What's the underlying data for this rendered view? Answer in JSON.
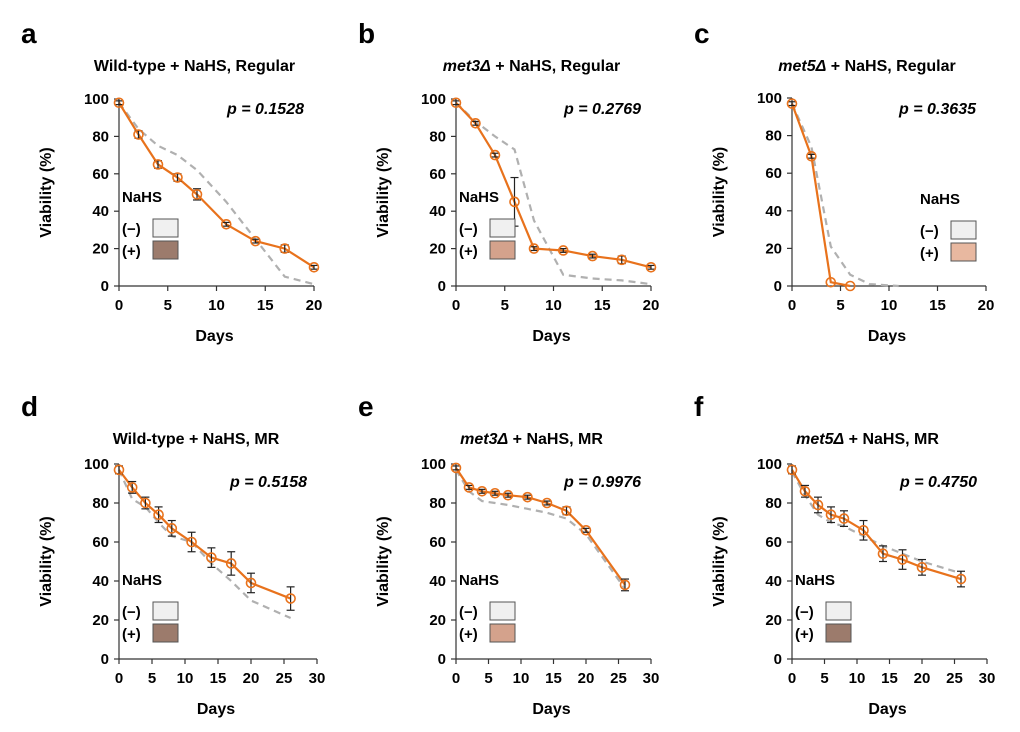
{
  "figure": {
    "bg": "#ffffff",
    "line_color": "#e8721c",
    "control_color": "#b0b0b0",
    "axis_color": "#333333"
  },
  "chart_data": [
    {
      "id": "a",
      "panel_label": "a",
      "type": "line",
      "title": "Wild-type + NaHS, Regular",
      "title_italic": "",
      "xlabel": "Days",
      "ylabel": "Viability (%)",
      "xlim": [
        0,
        20
      ],
      "ylim": [
        0,
        100
      ],
      "xticks": [
        "0",
        "5",
        "10",
        "15",
        "20"
      ],
      "yticks": [
        "0",
        "20",
        "40",
        "60",
        "80",
        "100"
      ],
      "p_value": "p = 0.1528",
      "legend": {
        "title": "NaHS",
        "items": [
          "(−)",
          "(+)"
        ],
        "colors": [
          "#f0f0f0",
          "#9c7b6c"
        ],
        "position": "bottom-left"
      },
      "series": [
        {
          "name": "NaHS (+)",
          "x": [
            0,
            2,
            4,
            6,
            8,
            11,
            14,
            17,
            20
          ],
          "y": [
            98,
            81,
            65,
            58,
            49,
            33,
            24,
            20,
            10
          ],
          "err": [
            1,
            2,
            2,
            2,
            3,
            1,
            1,
            2,
            1
          ]
        },
        {
          "name": "NaHS (−)",
          "x": [
            0,
            2,
            4,
            6,
            8,
            11,
            14,
            17,
            20
          ],
          "y": [
            98,
            84,
            75,
            70,
            62,
            45,
            25,
            5,
            1
          ]
        }
      ]
    },
    {
      "id": "b",
      "panel_label": "b",
      "type": "line",
      "title": " + NaHS, Regular",
      "title_italic": "met3Δ",
      "xlabel": "Days",
      "ylabel": "Viability (%)",
      "xlim": [
        0,
        20
      ],
      "ylim": [
        0,
        100
      ],
      "xticks": [
        "0",
        "5",
        "10",
        "15",
        "20"
      ],
      "yticks": [
        "0",
        "20",
        "40",
        "60",
        "80",
        "100"
      ],
      "p_value": "p = 0.2769",
      "legend": {
        "title": "NaHS",
        "items": [
          "(−)",
          "(+)"
        ],
        "colors": [
          "#f0f0f0",
          "#d4a28c"
        ],
        "position": "bottom-left"
      },
      "series": [
        {
          "name": "NaHS (+)",
          "x": [
            0,
            2,
            4,
            6,
            8,
            11,
            14,
            17,
            20
          ],
          "y": [
            98,
            87,
            70,
            45,
            20,
            19,
            16,
            14,
            10
          ],
          "err": [
            1,
            1,
            1,
            13,
            1,
            1,
            1,
            2,
            1
          ]
        },
        {
          "name": "NaHS (−)",
          "x": [
            0,
            2,
            4,
            6,
            8,
            11,
            14,
            17,
            20
          ],
          "y": [
            98,
            88,
            80,
            73,
            35,
            6,
            4,
            3,
            1
          ]
        }
      ]
    },
    {
      "id": "c",
      "panel_label": "c",
      "type": "line",
      "title": " + NaHS, Regular",
      "title_italic": "met5Δ",
      "xlabel": "Days",
      "ylabel": "Viability (%)",
      "xlim": [
        0,
        20
      ],
      "ylim": [
        0,
        100
      ],
      "xticks": [
        "0",
        "5",
        "10",
        "15",
        "20"
      ],
      "yticks": [
        "0",
        "20",
        "40",
        "60",
        "80",
        "100"
      ],
      "p_value": "p = 0.3635",
      "legend": {
        "title": "NaHS",
        "items": [
          "(−)",
          "(+)"
        ],
        "colors": [
          "#f0f0f0",
          "#e8b8a0"
        ],
        "position": "bottom-right"
      },
      "series": [
        {
          "name": "NaHS (+)",
          "x": [
            0,
            2,
            4,
            6
          ],
          "y": [
            97,
            69,
            2,
            0
          ],
          "err": [
            1,
            1,
            0,
            0
          ]
        },
        {
          "name": "NaHS (−)",
          "x": [
            0,
            2,
            4,
            6,
            8,
            11
          ],
          "y": [
            97,
            74,
            21,
            6,
            1,
            0
          ]
        }
      ]
    },
    {
      "id": "d",
      "panel_label": "d",
      "type": "line",
      "title": "Wild-type + NaHS, MR",
      "title_italic": "",
      "xlabel": "Days",
      "ylabel": "Viability (%)",
      "xlim": [
        0,
        30
      ],
      "ylim": [
        0,
        100
      ],
      "xticks": [
        "0",
        "5",
        "10",
        "15",
        "20",
        "25",
        "30"
      ],
      "yticks": [
        "0",
        "20",
        "40",
        "60",
        "80",
        "100"
      ],
      "p_value": "p = 0.5158",
      "legend": {
        "title": "NaHS",
        "items": [
          "(−)",
          "(+)"
        ],
        "colors": [
          "#f0f0f0",
          "#9c7b6c"
        ],
        "position": "bottom-left"
      },
      "series": [
        {
          "name": "NaHS (+)",
          "x": [
            0,
            2,
            4,
            6,
            8,
            11,
            14,
            17,
            20,
            26
          ],
          "y": [
            97,
            88,
            80,
            74,
            67,
            60,
            52,
            49,
            39,
            31
          ],
          "err": [
            2,
            3,
            3,
            4,
            4,
            5,
            5,
            6,
            5,
            6
          ]
        },
        {
          "name": "NaHS (−)",
          "x": [
            0,
            2,
            4,
            6,
            8,
            11,
            14,
            17,
            20,
            26
          ],
          "y": [
            97,
            82,
            78,
            70,
            63,
            60,
            49,
            40,
            30,
            21
          ]
        }
      ]
    },
    {
      "id": "e",
      "panel_label": "e",
      "type": "line",
      "title": " + NaHS, MR",
      "title_italic": "met3Δ",
      "xlabel": "Days",
      "ylabel": "Viability (%)",
      "xlim": [
        0,
        30
      ],
      "ylim": [
        0,
        100
      ],
      "xticks": [
        "0",
        "5",
        "10",
        "15",
        "20",
        "25",
        "30"
      ],
      "yticks": [
        "0",
        "20",
        "40",
        "60",
        "80",
        "100"
      ],
      "p_value": "p = 0.9976",
      "legend": {
        "title": "NaHS",
        "items": [
          "(−)",
          "(+)"
        ],
        "colors": [
          "#f0f0f0",
          "#d4a28c"
        ],
        "position": "bottom-left"
      },
      "series": [
        {
          "name": "NaHS (+)",
          "x": [
            0,
            2,
            4,
            6,
            8,
            11,
            14,
            17,
            20,
            26
          ],
          "y": [
            98,
            88,
            86,
            85,
            84,
            83,
            80,
            76,
            66,
            38
          ],
          "err": [
            1,
            1,
            1,
            1,
            1,
            1,
            1,
            2,
            1,
            3
          ]
        },
        {
          "name": "NaHS (−)",
          "x": [
            0,
            2,
            4,
            6,
            8,
            11,
            14,
            17,
            20,
            26
          ],
          "y": [
            97,
            86,
            81,
            80,
            79,
            77,
            75,
            72,
            64,
            36
          ]
        }
      ]
    },
    {
      "id": "f",
      "panel_label": "f",
      "type": "line",
      "title": " + NaHS, MR",
      "title_italic": "met5Δ",
      "xlabel": "Days",
      "ylabel": "Viability (%)",
      "xlim": [
        0,
        30
      ],
      "ylim": [
        0,
        100
      ],
      "xticks": [
        "0",
        "5",
        "10",
        "15",
        "20",
        "25",
        "30"
      ],
      "yticks": [
        "0",
        "20",
        "40",
        "60",
        "80",
        "100"
      ],
      "p_value": "p = 0.4750",
      "legend": {
        "title": "NaHS",
        "items": [
          "(−)",
          "(+)"
        ],
        "colors": [
          "#f0f0f0",
          "#9c7b6c"
        ],
        "position": "bottom-left"
      },
      "series": [
        {
          "name": "NaHS (+)",
          "x": [
            0,
            2,
            4,
            6,
            8,
            11,
            14,
            17,
            20,
            26
          ],
          "y": [
            97,
            86,
            79,
            74,
            72,
            66,
            54,
            51,
            47,
            41
          ],
          "err": [
            2,
            3,
            4,
            4,
            4,
            5,
            4,
            5,
            4,
            4
          ]
        },
        {
          "name": "NaHS (−)",
          "x": [
            0,
            2,
            4,
            6,
            8,
            11,
            14,
            17,
            20,
            26
          ],
          "y": [
            96,
            84,
            74,
            70,
            68,
            63,
            58,
            54,
            50,
            44
          ]
        }
      ]
    }
  ]
}
